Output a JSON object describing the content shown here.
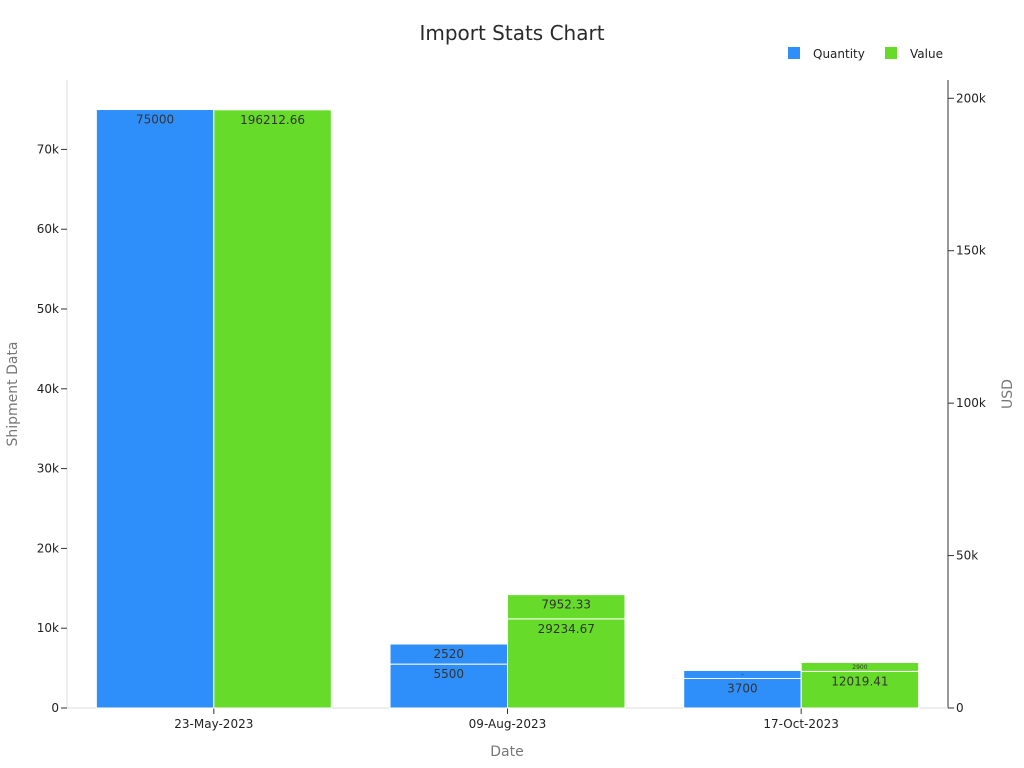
{
  "chart_data": {
    "type": "bar",
    "title": "Import Stats Chart",
    "xlabel": "Date",
    "ylabel_left": "Shipment Data",
    "ylabel_right": "USD",
    "categories": [
      "23-May-2023",
      "09-Aug-2023",
      "17-Oct-2023"
    ],
    "left_axis": {
      "min": 0,
      "max": 78700,
      "ticks": [
        0,
        10000,
        20000,
        30000,
        40000,
        50000,
        60000,
        70000
      ],
      "tick_labels": [
        "0",
        "10k",
        "20k",
        "30k",
        "40k",
        "50k",
        "60k",
        "70k"
      ]
    },
    "right_axis": {
      "min": 0,
      "max": 206000,
      "ticks": [
        0,
        50000,
        100000,
        150000,
        200000
      ],
      "tick_labels": [
        "0",
        "50k",
        "100k",
        "150k",
        "200k"
      ]
    },
    "series": [
      {
        "name": "Quantity",
        "color": "#2f8ffa",
        "axis": "left",
        "stacks": [
          [
            {
              "value": 75000,
              "label": "75000"
            }
          ],
          [
            {
              "value": 5500,
              "label": "5500"
            },
            {
              "value": 2520,
              "label": "2520"
            }
          ],
          [
            {
              "value": 3700,
              "label": "3700"
            },
            {
              "value": 1000,
              "label": "–"
            }
          ]
        ]
      },
      {
        "name": "Value",
        "color": "#66db2a",
        "axis": "right",
        "stacks": [
          [
            {
              "value": 196212.66,
              "label": "196212.66"
            }
          ],
          [
            {
              "value": 29234.67,
              "label": "29234.67"
            },
            {
              "value": 7952.33,
              "label": "7952.33"
            }
          ],
          [
            {
              "value": 12019.41,
              "label": "12019.41"
            },
            {
              "value": 2900,
              "label": "2900"
            }
          ]
        ]
      }
    ],
    "legend": {
      "position": "top-right",
      "entries": [
        "Quantity",
        "Value"
      ]
    }
  }
}
